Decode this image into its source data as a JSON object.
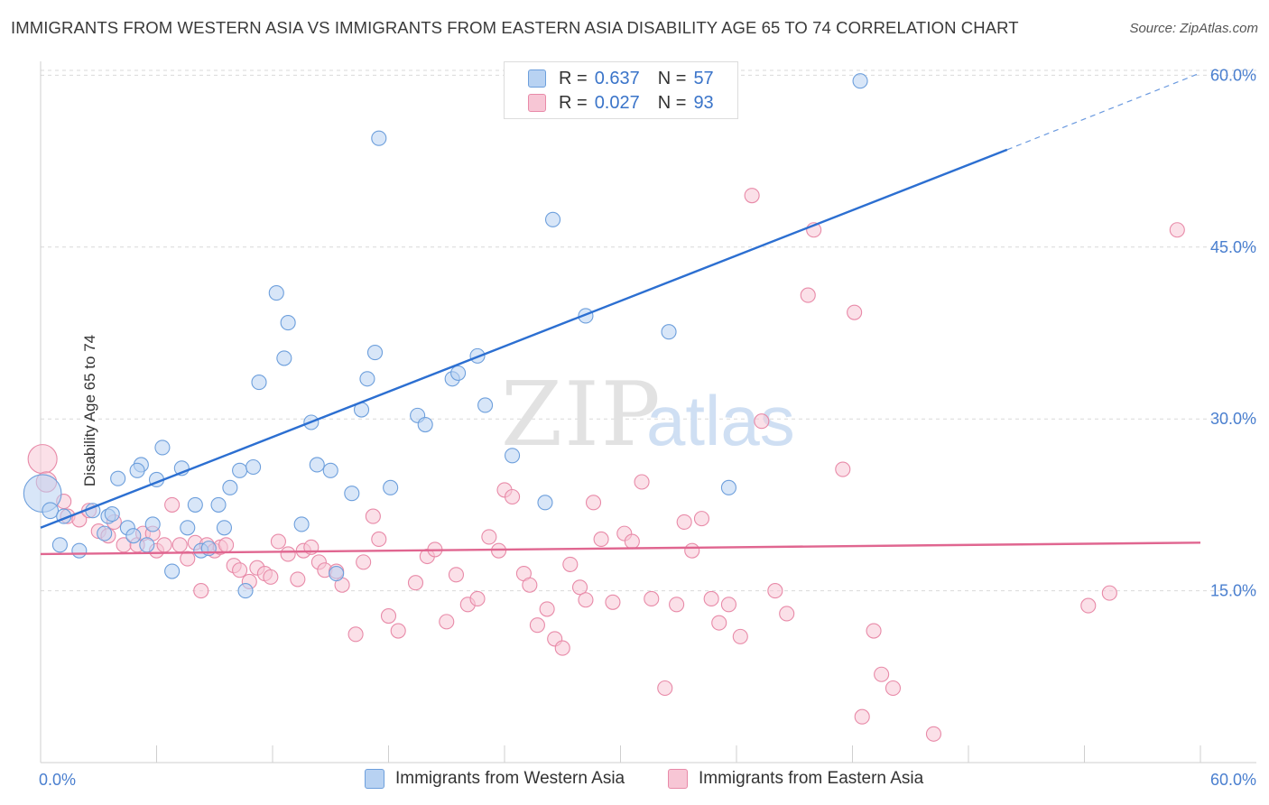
{
  "title": "IMMIGRANTS FROM WESTERN ASIA VS IMMIGRANTS FROM EASTERN ASIA DISABILITY AGE 65 TO 74 CORRELATION CHART",
  "source": "Source: ZipAtlas.com",
  "watermark": {
    "zip": "ZIP",
    "atlas": "atlas"
  },
  "legend": {
    "r_label": "R =",
    "n_label": "N =",
    "western": {
      "r": "0.637",
      "n": "57"
    },
    "eastern": {
      "r": "0.027",
      "n": "93"
    }
  },
  "colors": {
    "western_fill": "#b8d2f2",
    "western_stroke": "#6d9fdc",
    "western_line": "#2c6fd1",
    "eastern_fill": "#f7c6d5",
    "eastern_stroke": "#e88aa8",
    "eastern_line": "#e06690",
    "grid": "#d9d9d9",
    "tick_label": "#4a7fcf"
  },
  "chart_data": {
    "type": "scatter",
    "xlabel": "",
    "ylabel": "Disability Age 65 to 74",
    "xlim": [
      0,
      60
    ],
    "ylim": [
      0,
      62
    ],
    "x_tick_labels": [
      "0.0%",
      "60.0%"
    ],
    "y_ticks": [
      15,
      30,
      45,
      60
    ],
    "y_tick_labels": [
      "15.0%",
      "30.0%",
      "45.0%",
      "60.0%"
    ],
    "grid": "horizontal dashed",
    "legend_position": "top-center",
    "series": [
      {
        "name": "Immigrants from Western Asia",
        "trend": {
          "x0": 0,
          "y0": 20.5,
          "x1": 50,
          "y1": 53.5,
          "dashed_to_x": 60,
          "dashed_y": 60.2
        },
        "points": [
          [
            0.1,
            23.5,
            2.6
          ],
          [
            0.5,
            22,
            1.1
          ],
          [
            1,
            19,
            1
          ],
          [
            1.2,
            21.5,
            1
          ],
          [
            2,
            18.5,
            1
          ],
          [
            2.7,
            22,
            1
          ],
          [
            3.3,
            20,
            1
          ],
          [
            3.5,
            21.5,
            1
          ],
          [
            3.7,
            21.7,
            1
          ],
          [
            4,
            24.8,
            1
          ],
          [
            4.5,
            20.5,
            1
          ],
          [
            4.8,
            19.8,
            1
          ],
          [
            5.5,
            19,
            1
          ],
          [
            5.2,
            26,
            1
          ],
          [
            5,
            25.5,
            1
          ],
          [
            5.8,
            20.8,
            1
          ],
          [
            6,
            24.7,
            1
          ],
          [
            6.3,
            27.5,
            1
          ],
          [
            6.8,
            16.7,
            1
          ],
          [
            7.3,
            25.7,
            1
          ],
          [
            7.6,
            20.5,
            1
          ],
          [
            8,
            22.5,
            1
          ],
          [
            8.3,
            18.5,
            1
          ],
          [
            8.7,
            18.7,
            1
          ],
          [
            9.2,
            22.5,
            1
          ],
          [
            9.5,
            20.5,
            1
          ],
          [
            9.8,
            24,
            1
          ],
          [
            10.3,
            25.5,
            1
          ],
          [
            10.6,
            15,
            1
          ],
          [
            11,
            25.8,
            1
          ],
          [
            11.3,
            33.2,
            1
          ],
          [
            12.2,
            41,
            1
          ],
          [
            12.6,
            35.3,
            1
          ],
          [
            12.8,
            38.4,
            1
          ],
          [
            13.5,
            20.8,
            1
          ],
          [
            14,
            29.7,
            1
          ],
          [
            14.3,
            26,
            1
          ],
          [
            15,
            25.5,
            1
          ],
          [
            15.3,
            16.5,
            1
          ],
          [
            16.1,
            23.5,
            1
          ],
          [
            16.6,
            30.8,
            1
          ],
          [
            16.9,
            33.5,
            1
          ],
          [
            17.3,
            35.8,
            1
          ],
          [
            17.5,
            54.5,
            1
          ],
          [
            18.1,
            24,
            1
          ],
          [
            19.5,
            30.3,
            1
          ],
          [
            19.9,
            29.5,
            1
          ],
          [
            21.3,
            33.5,
            1
          ],
          [
            21.6,
            34,
            1
          ],
          [
            22.6,
            35.5,
            1
          ],
          [
            23,
            31.2,
            1
          ],
          [
            24.4,
            26.8,
            1
          ],
          [
            26.1,
            22.7,
            1
          ],
          [
            26.5,
            47.4,
            1
          ],
          [
            28.2,
            39,
            1
          ],
          [
            32.5,
            37.6,
            1
          ],
          [
            35.6,
            24,
            1
          ],
          [
            42.4,
            59.5,
            1
          ]
        ]
      },
      {
        "name": "Immigrants from Eastern Asia",
        "trend": {
          "x0": 0,
          "y0": 18.2,
          "x1": 60,
          "y1": 19.2
        },
        "points": [
          [
            0.1,
            26.5,
            2
          ],
          [
            0.3,
            24.5,
            1.4
          ],
          [
            1.2,
            22.8,
            1
          ],
          [
            1.4,
            21.5,
            1
          ],
          [
            2,
            21.2,
            1
          ],
          [
            2.5,
            22,
            1
          ],
          [
            3,
            20.2,
            1
          ],
          [
            3.5,
            19.8,
            1
          ],
          [
            3.8,
            21,
            1
          ],
          [
            4.3,
            19,
            1
          ],
          [
            5,
            19,
            1
          ],
          [
            5.3,
            20,
            1
          ],
          [
            5.8,
            20,
            1
          ],
          [
            6,
            18.5,
            1
          ],
          [
            6.4,
            19,
            1
          ],
          [
            6.8,
            22.5,
            1
          ],
          [
            7.2,
            19,
            1
          ],
          [
            7.6,
            17.8,
            1
          ],
          [
            8,
            19.2,
            1
          ],
          [
            8.3,
            15,
            1
          ],
          [
            8.6,
            19,
            1
          ],
          [
            9,
            18.5,
            1
          ],
          [
            9.3,
            18.8,
            1
          ],
          [
            9.6,
            19,
            1
          ],
          [
            10,
            17.2,
            1
          ],
          [
            10.3,
            16.8,
            1
          ],
          [
            10.8,
            15.8,
            1
          ],
          [
            11.2,
            17,
            1
          ],
          [
            11.6,
            16.5,
            1
          ],
          [
            11.9,
            16.2,
            1
          ],
          [
            12.3,
            19.3,
            1
          ],
          [
            12.8,
            18.2,
            1
          ],
          [
            13.3,
            16,
            1
          ],
          [
            13.6,
            18.5,
            1
          ],
          [
            14,
            18.8,
            1
          ],
          [
            14.4,
            17.5,
            1
          ],
          [
            14.7,
            16.8,
            1
          ],
          [
            15.3,
            16.7,
            1
          ],
          [
            15.6,
            15.5,
            1
          ],
          [
            16.3,
            11.2,
            1
          ],
          [
            16.7,
            17.5,
            1
          ],
          [
            17.2,
            21.5,
            1
          ],
          [
            17.5,
            19.5,
            1
          ],
          [
            18,
            12.8,
            1
          ],
          [
            18.5,
            11.5,
            1
          ],
          [
            19.4,
            15.7,
            1
          ],
          [
            20,
            18,
            1
          ],
          [
            20.4,
            18.6,
            1
          ],
          [
            21,
            12.3,
            1
          ],
          [
            21.5,
            16.4,
            1
          ],
          [
            22.1,
            13.8,
            1
          ],
          [
            22.6,
            14.3,
            1
          ],
          [
            23.2,
            19.7,
            1
          ],
          [
            23.7,
            18.5,
            1
          ],
          [
            24,
            23.8,
            1
          ],
          [
            24.4,
            23.2,
            1
          ],
          [
            25,
            16.5,
            1
          ],
          [
            25.3,
            15.5,
            1
          ],
          [
            25.7,
            12,
            1
          ],
          [
            26.2,
            13.4,
            1
          ],
          [
            26.6,
            10.8,
            1
          ],
          [
            27,
            10,
            1
          ],
          [
            27.4,
            17.3,
            1
          ],
          [
            27.9,
            15.3,
            1
          ],
          [
            28.2,
            14.2,
            1
          ],
          [
            28.6,
            22.7,
            1
          ],
          [
            29,
            19.5,
            1
          ],
          [
            29.6,
            14,
            1
          ],
          [
            30.2,
            20,
            1
          ],
          [
            30.6,
            19.3,
            1
          ],
          [
            31.1,
            24.5,
            1
          ],
          [
            31.6,
            14.3,
            1
          ],
          [
            32.3,
            6.5,
            1
          ],
          [
            32.9,
            13.8,
            1
          ],
          [
            33.3,
            21,
            1
          ],
          [
            33.7,
            18.5,
            1
          ],
          [
            34.2,
            21.3,
            1
          ],
          [
            34.7,
            14.3,
            1
          ],
          [
            35.1,
            12.2,
            1
          ],
          [
            35.6,
            13.8,
            1
          ],
          [
            36.2,
            11,
            1
          ],
          [
            36.8,
            49.5,
            1
          ],
          [
            37.3,
            29.8,
            1
          ],
          [
            38,
            15,
            1
          ],
          [
            38.6,
            13,
            1
          ],
          [
            39.7,
            40.8,
            1
          ],
          [
            40,
            46.5,
            1
          ],
          [
            41.5,
            25.6,
            1
          ],
          [
            42.1,
            39.3,
            1
          ],
          [
            42.5,
            4,
            1
          ],
          [
            43.1,
            11.5,
            1
          ],
          [
            43.5,
            7.7,
            1
          ],
          [
            44.1,
            6.5,
            1
          ],
          [
            46.2,
            2.5,
            1
          ],
          [
            54.2,
            13.7,
            1
          ],
          [
            55.3,
            14.8,
            1
          ],
          [
            58.8,
            46.5,
            1
          ]
        ]
      }
    ]
  }
}
